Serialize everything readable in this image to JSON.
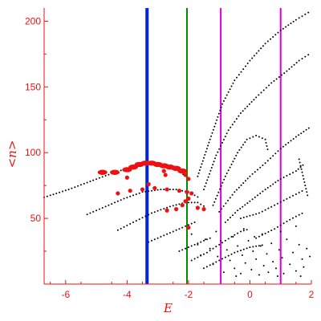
{
  "chart_data": {
    "type": "scatter",
    "xlabel": "E",
    "ylabel": "<n>",
    "xlim": [
      -6.7,
      2.0
    ],
    "ylim": [
      0,
      210
    ],
    "x_ticks": [
      -6,
      -4,
      -2,
      0,
      2
    ],
    "y_ticks": [
      50,
      100,
      150,
      200
    ],
    "colors": {
      "axis": "#ee1111",
      "points": "#000000",
      "highlight": "#ee1111",
      "line_blue": "#0022ee",
      "line_green": "#008800",
      "line_magenta": "#dd00dd"
    },
    "vertical_lines": [
      {
        "x": -3.35,
        "color": "#0022ee"
      },
      {
        "x": -2.05,
        "color": "#008800"
      },
      {
        "x": -0.95,
        "color": "#dd00dd"
      },
      {
        "x": 1.0,
        "color": "#dd00dd"
      }
    ],
    "series": [
      {
        "style": "dotted-curve",
        "color": "#000000",
        "points": [
          [
            -6.7,
            66
          ],
          [
            -5.9,
            72
          ],
          [
            -5.1,
            79
          ],
          [
            -4.4,
            85
          ],
          [
            -3.7,
            90
          ],
          [
            -3.0,
            92
          ],
          [
            -2.4,
            88
          ],
          [
            -2.1,
            82
          ]
        ]
      },
      {
        "style": "dotted-curve",
        "color": "#000000",
        "points": [
          [
            -5.3,
            53
          ],
          [
            -4.7,
            59
          ],
          [
            -4.1,
            65
          ],
          [
            -3.5,
            70
          ],
          [
            -2.9,
            72
          ],
          [
            -2.4,
            72
          ],
          [
            -2.0,
            70
          ],
          [
            -1.6,
            65
          ]
        ]
      },
      {
        "style": "dotted-curve",
        "color": "#000000",
        "points": [
          [
            -4.3,
            41
          ],
          [
            -3.8,
            47
          ],
          [
            -3.2,
            54
          ],
          [
            -2.6,
            59
          ],
          [
            -2.1,
            62
          ],
          [
            -1.7,
            62
          ],
          [
            -1.4,
            58
          ]
        ]
      },
      {
        "style": "dotted-curve",
        "color": "#000000",
        "points": [
          [
            -3.3,
            32
          ],
          [
            -2.9,
            36
          ],
          [
            -2.4,
            41
          ],
          [
            -2.0,
            45
          ],
          [
            -1.7,
            48
          ]
        ]
      },
      {
        "style": "dotted-curve",
        "color": "#000000",
        "points": [
          [
            -2.3,
            25
          ],
          [
            -1.9,
            29
          ],
          [
            -1.5,
            33
          ],
          [
            -1.2,
            36
          ]
        ]
      },
      {
        "style": "dotted-curve",
        "color": "#000000",
        "points": [
          [
            -1.7,
            82
          ],
          [
            -1.3,
            110
          ],
          [
            -0.9,
            137
          ],
          [
            -0.5,
            155
          ],
          [
            0.0,
            170
          ],
          [
            0.5,
            183
          ],
          [
            1.0,
            193
          ],
          [
            1.5,
            201
          ],
          [
            2.0,
            208
          ]
        ]
      },
      {
        "style": "dotted-curve",
        "color": "#000000",
        "points": [
          [
            -1.5,
            72
          ],
          [
            -1.1,
            98
          ],
          [
            -0.7,
            117
          ],
          [
            -0.3,
            130
          ],
          [
            0.2,
            142
          ],
          [
            0.7,
            153
          ],
          [
            1.2,
            162
          ],
          [
            1.6,
            170
          ],
          [
            2.0,
            176
          ]
        ]
      },
      {
        "style": "dotted-curve",
        "color": "#000000",
        "points": [
          [
            -1.2,
            60
          ],
          [
            -0.8,
            82
          ],
          [
            -0.4,
            100
          ],
          [
            -0.1,
            110
          ],
          [
            0.2,
            113
          ],
          [
            0.5,
            110
          ],
          [
            0.6,
            100
          ]
        ]
      },
      {
        "style": "dotted-curve",
        "color": "#000000",
        "points": [
          [
            -1.0,
            55
          ],
          [
            -0.5,
            70
          ],
          [
            0.0,
            82
          ],
          [
            0.5,
            92
          ],
          [
            1.0,
            103
          ],
          [
            1.5,
            112
          ],
          [
            2.0,
            120
          ]
        ]
      },
      {
        "style": "dotted-curve",
        "color": "#000000",
        "points": [
          [
            -0.8,
            47
          ],
          [
            -0.4,
            56
          ],
          [
            0.0,
            63
          ],
          [
            0.5,
            72
          ],
          [
            1.0,
            80
          ],
          [
            1.5,
            86
          ],
          [
            1.8,
            92
          ]
        ]
      },
      {
        "style": "dotted-curve",
        "color": "#000000",
        "points": [
          [
            -0.3,
            50
          ],
          [
            0.3,
            54
          ],
          [
            0.8,
            60
          ],
          [
            1.3,
            66
          ],
          [
            1.8,
            72
          ]
        ]
      },
      {
        "style": "dotted-curve",
        "color": "#000000",
        "points": [
          [
            0.2,
            35
          ],
          [
            0.8,
            42
          ],
          [
            1.3,
            49
          ],
          [
            1.8,
            55
          ]
        ]
      },
      {
        "style": "dotted-curve",
        "color": "#000000",
        "points": [
          [
            -1.9,
            18
          ],
          [
            -1.4,
            24
          ],
          [
            -1.0,
            30
          ],
          [
            -0.6,
            36
          ],
          [
            -0.3,
            40
          ],
          [
            0.0,
            42
          ]
        ]
      },
      {
        "style": "dotted-curve",
        "color": "#000000",
        "points": [
          [
            -1.5,
            12
          ],
          [
            -1.0,
            18
          ],
          [
            -0.5,
            24
          ],
          [
            0.0,
            28
          ],
          [
            0.5,
            30
          ]
        ]
      },
      {
        "style": "dotted-curve",
        "color": "#000000",
        "points": [
          [
            1.6,
            95
          ],
          [
            1.7,
            85
          ],
          [
            1.8,
            75
          ],
          [
            1.9,
            65
          ]
        ]
      },
      {
        "style": "scatter",
        "color": "#000000",
        "points": [
          [
            -1.9,
            38
          ],
          [
            -1.7,
            30
          ],
          [
            -1.6,
            22
          ],
          [
            -1.45,
            34
          ],
          [
            -1.3,
            27
          ],
          [
            -1.2,
            15
          ],
          [
            -1.05,
            21
          ],
          [
            -0.95,
            33
          ],
          [
            -0.85,
            9
          ],
          [
            -0.75,
            26
          ],
          [
            -0.65,
            18
          ],
          [
            -0.55,
            36
          ],
          [
            -0.5,
            12
          ],
          [
            -0.4,
            29
          ],
          [
            -0.3,
            8
          ],
          [
            -0.25,
            22
          ],
          [
            -0.15,
            16
          ],
          [
            -0.05,
            33
          ],
          [
            0.05,
            11
          ],
          [
            0.1,
            25
          ],
          [
            0.2,
            19
          ],
          [
            0.3,
            7
          ],
          [
            0.35,
            29
          ],
          [
            0.45,
            14
          ],
          [
            0.55,
            23
          ],
          [
            0.6,
            9
          ],
          [
            0.7,
            31
          ],
          [
            0.75,
            17
          ],
          [
            0.85,
            12
          ],
          [
            0.95,
            26
          ],
          [
            1.05,
            20
          ],
          [
            1.1,
            8
          ],
          [
            1.2,
            34
          ],
          [
            1.3,
            15
          ],
          [
            1.4,
            24
          ],
          [
            1.5,
            10
          ],
          [
            1.6,
            30
          ],
          [
            1.7,
            19
          ],
          [
            1.75,
            13
          ],
          [
            1.85,
            27
          ],
          [
            1.95,
            21
          ],
          [
            -0.2,
            42
          ],
          [
            0.4,
            38
          ],
          [
            1.0,
            40
          ],
          [
            1.5,
            44
          ],
          [
            -1.1,
            40
          ],
          [
            0.15,
            36
          ],
          [
            0.9,
            6
          ],
          [
            1.65,
            6
          ],
          [
            -0.45,
            6
          ]
        ]
      },
      {
        "style": "highlight-band",
        "color": "#ee1111",
        "points": [
          [
            -4.8,
            85
          ],
          [
            -4.4,
            85
          ],
          [
            -4.0,
            87
          ],
          [
            -3.8,
            89
          ],
          [
            -3.6,
            91
          ],
          [
            -3.4,
            92
          ],
          [
            -3.2,
            92
          ],
          [
            -3.0,
            91
          ],
          [
            -2.8,
            90
          ],
          [
            -2.6,
            89
          ],
          [
            -2.4,
            88
          ],
          [
            -2.2,
            86
          ]
        ]
      },
      {
        "style": "highlight",
        "color": "#ee1111",
        "points": [
          [
            -4.3,
            69
          ],
          [
            -3.9,
            71
          ],
          [
            -3.5,
            72
          ],
          [
            -3.1,
            73
          ],
          [
            -2.7,
            72
          ],
          [
            -2.3,
            71
          ],
          [
            -2.05,
            70
          ],
          [
            -1.9,
            69
          ],
          [
            -2.8,
            86
          ],
          [
            -2.75,
            83
          ],
          [
            -2.1,
            83
          ],
          [
            -2.0,
            80
          ],
          [
            -2.1,
            63
          ],
          [
            -2.0,
            65
          ],
          [
            -2.2,
            60
          ],
          [
            -2.4,
            57
          ],
          [
            -2.7,
            56
          ],
          [
            -1.7,
            58
          ],
          [
            -1.5,
            57
          ],
          [
            -2.0,
            43
          ],
          [
            -4.0,
            81
          ],
          [
            -3.3,
            76
          ]
        ]
      }
    ]
  }
}
